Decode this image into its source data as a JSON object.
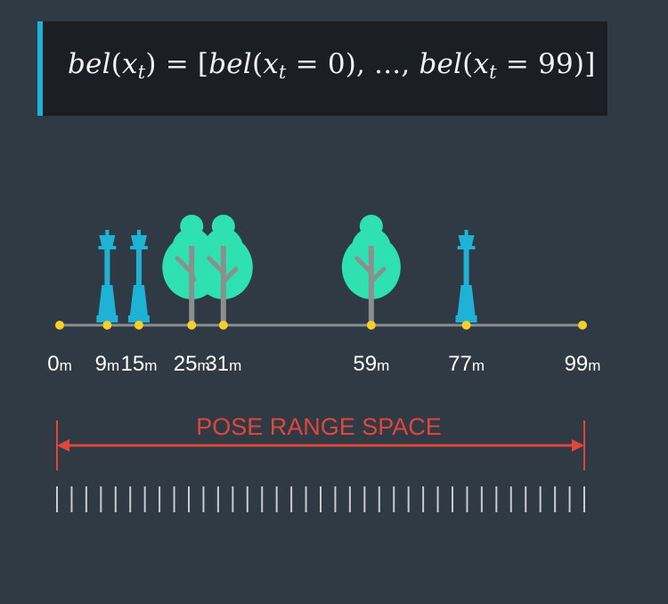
{
  "formula": {
    "bel1": "bel",
    "x1": "x",
    "t1": "t",
    "mid": ") = [",
    "bel2": "bel",
    "x2": "x",
    "t2": "t",
    "eq0": " = 0), ..., ",
    "bel3": "bel",
    "x3": "x",
    "t3": "t",
    "eq99": " = 99)]"
  },
  "road": {
    "markers": [
      {
        "num": "0",
        "unit": "m",
        "pos": 0
      },
      {
        "num": "9",
        "unit": "m",
        "pos": 9
      },
      {
        "num": "15",
        "unit": "m",
        "pos": 15
      },
      {
        "num": "25",
        "unit": "m",
        "pos": 25
      },
      {
        "num": "31",
        "unit": "m",
        "pos": 31
      },
      {
        "num": "59",
        "unit": "m",
        "pos": 59
      },
      {
        "num": "77",
        "unit": "m",
        "pos": 77
      },
      {
        "num": "99",
        "unit": "m",
        "pos": 99
      }
    ],
    "landmarks": [
      {
        "type": "lamp",
        "pos": 9
      },
      {
        "type": "lamp",
        "pos": 15
      },
      {
        "type": "tree",
        "pos": 25
      },
      {
        "type": "tree",
        "pos": 31
      },
      {
        "type": "tree",
        "pos": 59
      },
      {
        "type": "lamp",
        "pos": 77
      }
    ]
  },
  "pose_range": {
    "label": "POSE RANGE SPACE",
    "tick_count": 37
  },
  "colors": {
    "background": "#2f3a45",
    "formula_bg": "#1b1f24",
    "accent_bar": "#1eb3d6",
    "lamp": "#1eb3d6",
    "tree": "#2fe0b0",
    "trunk": "#8a8f8f",
    "marker_dot": "#f5d028",
    "range": "#e0463c",
    "text": "#ffffff",
    "ticks": "#c8ccd0"
  }
}
